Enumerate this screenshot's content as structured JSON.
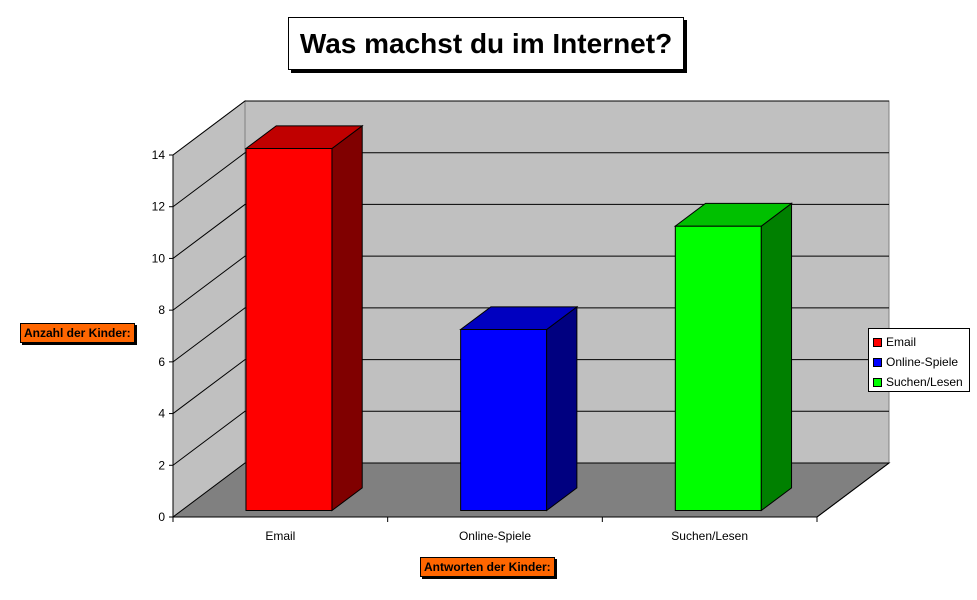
{
  "chart_data": {
    "type": "bar",
    "title": "Was machst du im Internet?",
    "xlabel": "Antworten der Kinder:",
    "ylabel": "Anzahl der Kinder:",
    "categories": [
      "Email",
      "Online-Spiele",
      "Suchen/Lesen"
    ],
    "values": [
      14,
      7,
      11
    ],
    "ylim": [
      0,
      14
    ],
    "yticks": [
      0,
      2,
      4,
      6,
      8,
      10,
      12,
      14
    ],
    "grid": true,
    "three_d": true,
    "legend_position": "right",
    "colors": [
      "#ff0000",
      "#0000ff",
      "#00ff00"
    ],
    "side_colors": [
      "#800000",
      "#000080",
      "#008000"
    ],
    "top_colors": [
      "#c00000",
      "#0000c0",
      "#00c000"
    ],
    "wall_color": "#c0c0c0",
    "floor_color": "#808080",
    "legend": [
      {
        "label": "Email",
        "color": "#ff0000"
      },
      {
        "label": "Online-Spiele",
        "color": "#0000ff"
      },
      {
        "label": "Suchen/Lesen",
        "color": "#00ff00"
      }
    ]
  }
}
